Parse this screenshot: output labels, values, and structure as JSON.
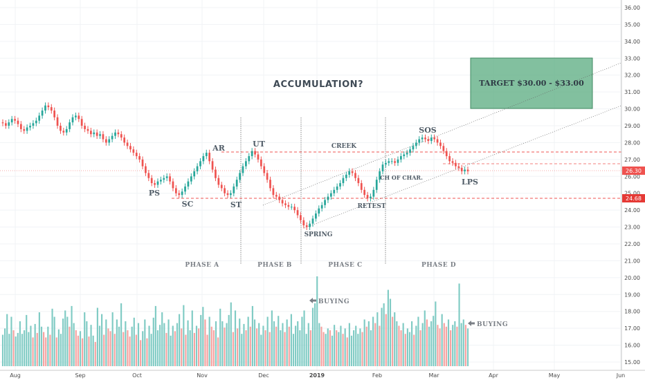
{
  "chart_data": {
    "type": "candlestick",
    "title": "ACCUMULATION?",
    "y_axis": {
      "side": "right",
      "range": [
        14.5,
        36.3
      ],
      "ticks": [
        "15.00",
        "16.00",
        "17.00",
        "18.00",
        "19.00",
        "20.00",
        "21.00",
        "22.00",
        "23.00",
        "24.00",
        "25.00",
        "26.00",
        "27.00",
        "28.00",
        "29.00",
        "30.00",
        "31.00",
        "32.00",
        "33.00",
        "34.00",
        "35.00",
        "36.00"
      ]
    },
    "x_axis": {
      "ticks": [
        "Aug",
        "Sep",
        "Oct",
        "Nov",
        "Dec",
        "2019",
        "Feb",
        "Mar",
        "Apr",
        "May",
        "Jun"
      ]
    },
    "price_badges": [
      {
        "value": "26.30",
        "color": "#ef5350"
      },
      {
        "value": "24.68",
        "color": "#e53935"
      }
    ],
    "annotations": [
      {
        "label": "PS",
        "price": 25.0
      },
      {
        "label": "SC",
        "price": 24.1
      },
      {
        "label": "AR",
        "price": 27.5
      },
      {
        "label": "ST",
        "price": 24.1
      },
      {
        "label": "UT",
        "price": 28.0
      },
      {
        "label": "CREEK",
        "price": 27.6
      },
      {
        "label": "SPRING",
        "price": 22.6
      },
      {
        "label": "RETEST",
        "price": 24.1
      },
      {
        "label": "CH OF CHAR.",
        "price": 25.8
      },
      {
        "label": "SOS",
        "price": 28.6
      },
      {
        "label": "LPS",
        "price": 25.6
      }
    ],
    "phases": [
      "PHASE A",
      "PHASE B",
      "PHASE C",
      "PHASE D"
    ],
    "volume_labels": [
      "BUYING",
      "BUYING"
    ],
    "target_box": {
      "label": "TARGET $30.00 - $33.00",
      "low": 30.0,
      "high": 33.0
    },
    "levels": {
      "creek": 27.4,
      "support": 24.68,
      "last": 26.3,
      "mid": 26.7
    },
    "price_start": 29.2,
    "volume": [
      0.35,
      0.42,
      0.58,
      0.36,
      0.55,
      0.4,
      0.33,
      0.37,
      0.5,
      0.36,
      0.4,
      0.57,
      0.38,
      0.45,
      0.32,
      0.47,
      0.37,
      0.6,
      0.44,
      0.38,
      0.32,
      0.44,
      0.35,
      0.64,
      0.55,
      0.32,
      0.41,
      0.36,
      0.53,
      0.62,
      0.55,
      0.44,
      0.67,
      0.48,
      0.4,
      0.34,
      0.39,
      0.31,
      0.6,
      0.5,
      0.33,
      0.46,
      0.34,
      0.27,
      0.65,
      0.45,
      0.58,
      0.35,
      0.52,
      0.42,
      0.39,
      0.6,
      0.36,
      0.52,
      0.44,
      0.7,
      0.38,
      0.5,
      0.4,
      0.33,
      0.44,
      0.54,
      0.35,
      0.48,
      0.29,
      0.39,
      0.52,
      0.31,
      0.45,
      0.36,
      0.54,
      0.67,
      0.4,
      0.46,
      0.6,
      0.48,
      0.37,
      0.52,
      0.34,
      0.45,
      0.39,
      0.48,
      0.58,
      0.42,
      0.68,
      0.35,
      0.51,
      0.4,
      0.62,
      0.37,
      0.45,
      0.42,
      0.57,
      0.66,
      0.52,
      0.35,
      0.55,
      0.44,
      0.4,
      0.5,
      0.32,
      0.64,
      0.5,
      0.43,
      0.48,
      0.57,
      0.71,
      0.38,
      0.62,
      0.42,
      0.53,
      0.36,
      0.47,
      0.4,
      0.55,
      0.44,
      0.67,
      0.52,
      0.42,
      0.48,
      0.35,
      0.45,
      0.4,
      0.55,
      0.38,
      0.62,
      0.5,
      0.44,
      0.56,
      0.4,
      0.48,
      0.38,
      0.52,
      0.44,
      0.58,
      0.36,
      0.45,
      0.5,
      0.4,
      0.55,
      0.62,
      0.36,
      0.48,
      0.4,
      0.65,
      0.7,
      1.0,
      0.48,
      0.44,
      0.38,
      0.36,
      0.42,
      0.4,
      0.34,
      0.46,
      0.4,
      0.38,
      0.45,
      0.36,
      0.42,
      0.32,
      0.48,
      0.34,
      0.4,
      0.45,
      0.36,
      0.42,
      0.38,
      0.52,
      0.44,
      0.5,
      0.4,
      0.55,
      0.48,
      0.6,
      0.45,
      0.65,
      0.7,
      0.58,
      0.85,
      0.75,
      0.55,
      0.6,
      0.5,
      0.45,
      0.4,
      0.48,
      0.36,
      0.42,
      0.38,
      0.5,
      0.35,
      0.45,
      0.55,
      0.4,
      0.48,
      0.62,
      0.52,
      0.44,
      0.5,
      0.56,
      0.72,
      0.46,
      0.42,
      0.58,
      0.48,
      0.44,
      0.52,
      0.4,
      0.46,
      0.5,
      0.44,
      0.92,
      0.48,
      0.52,
      0.46,
      0.42
    ],
    "candles": [
      0.1,
      -0.2,
      0.3,
      0.25,
      -0.15,
      -0.2,
      -0.3,
      -0.2,
      0.2,
      0.1,
      0.25,
      0.15,
      0.3,
      0.35,
      0.3,
      -0.1,
      0.25,
      0.35,
      0.1,
      -0.4,
      -0.35,
      -0.2,
      -0.3,
      0.1,
      0.25,
      0.3,
      -0.2,
      0.1,
      0.25,
      0.1,
      -0.15,
      -0.35,
      -0.3,
      -0.2,
      -0.3,
      -0.1,
      0.1,
      -0.15,
      -0.2,
      -0.05,
      0.1,
      -0.2,
      0.15,
      -0.1,
      -0.15,
      0.05,
      0.25,
      0.15,
      -0.1,
      0.2,
      -0.05,
      0.1,
      -0.2,
      -0.3,
      -0.25,
      -0.2,
      0.1,
      -0.25,
      -0.1,
      0.3,
      -0.35,
      -0.2,
      -0.3,
      -0.4,
      -0.3,
      -0.35,
      -0.1,
      -0.25,
      0.1,
      0.05,
      0.3,
      -0.1,
      0.2,
      -0.15,
      -0.25,
      -0.1,
      -0.3,
      -0.2,
      0.05,
      -0.1,
      0.15,
      0.2,
      0.3,
      0.3,
      0.25,
      0.15,
      0.3,
      0.2,
      0.35,
      0.3,
      -0.2,
      -0.35,
      -0.3,
      -0.1,
      -0.3,
      -0.15,
      -0.1,
      0.1,
      -0.25,
      0.2,
      0.35,
      0.3,
      0.25,
      0.15,
      0.3,
      0.2,
      0.15,
      -0.3,
      -0.2,
      -0.4,
      -0.3,
      -0.2,
      -0.15,
      -0.3,
      -0.35,
      0.2,
      0.15,
      0.3,
      -0.2,
      -0.1,
      -0.2,
      -0.3,
      -0.35,
      -0.4,
      -0.2,
      -0.3,
      -0.15,
      0.25,
      0.35,
      0.3,
      0.2,
      0.25,
      0.3,
      0.15,
      -0.1,
      0.2,
      0.15,
      0.1,
      0.2,
      0.15,
      0.05,
      0.2,
      0.15,
      -0.1,
      -0.15,
      -0.2,
      0.1,
      -0.2,
      -0.3,
      -0.1,
      0.45,
      0.35,
      0.3,
      0.25,
      -0.2,
      0.1,
      0.15,
      0.2,
      0.1,
      0.3,
      0.2,
      0.25,
      0.15,
      0.2,
      0.3,
      0.25,
      0.3,
      -0.1,
      -0.2,
      -0.3,
      -0.25,
      -0.2,
      -0.15,
      -0.3,
      -0.2,
      -0.3,
      -0.35,
      -0.4,
      -0.3,
      -0.2,
      -0.15,
      -0.1
    ],
    "candle_anchor": [
      29.15,
      29.0,
      29.2,
      29.4,
      29.3,
      29.1,
      28.8,
      28.7,
      28.9,
      29.0,
      29.15,
      29.3,
      29.6,
      29.9,
      30.2,
      30.1,
      29.9,
      29.5,
      29.0,
      28.7,
      28.6,
      28.8,
      29.2,
      29.5,
      29.6,
      29.4,
      29.0,
      28.8,
      28.7,
      28.5,
      28.6,
      28.4,
      28.5,
      28.2,
      28.0,
      28.2,
      28.4,
      28.6,
      28.5,
      28.3,
      28.0,
      27.8,
      27.6,
      27.4,
      27.2,
      27.0,
      26.6,
      26.2,
      25.9,
      25.6,
      25.5,
      25.7,
      25.8,
      25.9,
      26.0,
      25.7,
      25.3,
      25.0,
      24.9,
      25.1,
      25.4,
      25.7,
      26.0,
      26.3,
      26.6,
      26.9,
      27.2,
      27.4,
      26.9,
      26.4,
      25.9,
      25.5,
      25.3,
      25.0,
      24.9,
      25.0,
      25.4,
      25.8,
      26.2,
      26.6,
      26.9,
      27.2,
      27.5,
      27.3,
      27.0,
      26.6,
      26.2,
      25.8,
      25.3,
      24.9,
      24.8,
      24.6,
      24.4,
      24.3,
      24.2,
      24.2,
      24.0,
      23.7,
      23.4,
      23.1,
      23.0,
      23.2,
      23.5,
      23.8,
      24.1,
      24.3,
      24.6,
      24.8,
      25.0,
      25.2,
      25.4,
      25.6,
      25.9,
      26.1,
      26.3,
      26.2,
      25.9,
      25.6,
      25.2,
      24.9,
      24.7,
      24.8,
      25.2,
      25.8,
      26.3,
      26.7,
      26.8,
      26.9,
      26.9,
      26.8,
      27.0,
      27.2,
      27.3,
      27.4,
      27.6,
      27.8,
      28.0,
      28.2,
      28.3,
      28.2,
      28.1,
      28.3,
      28.2,
      28.0,
      27.8,
      27.5,
      27.2,
      26.9,
      26.8,
      26.6,
      26.5,
      26.3,
      26.4,
      26.3
    ]
  }
}
